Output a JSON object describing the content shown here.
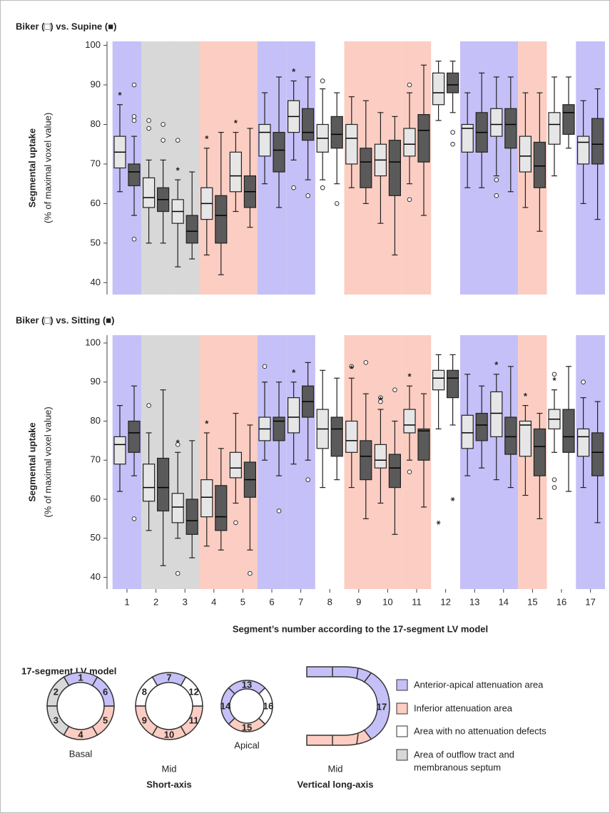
{
  "chart_data": [
    {
      "type": "box",
      "title": "Biker (□) vs. Supine (■)",
      "ylabel": "Segmental uptake",
      "ylabel_sub": "(% of maximal voxel value)",
      "ylim": [
        37,
        101
      ],
      "yticks": [
        40,
        50,
        60,
        70,
        80,
        90,
        100
      ],
      "series": [
        {
          "color": "#e6e6e6",
          "whislo": [
            63,
            50,
            44,
            47,
            58,
            65,
            71,
            66,
            64,
            55,
            65,
            81,
            64,
            67,
            59,
            67,
            60
          ],
          "q1": [
            69,
            59,
            55,
            56,
            63,
            72,
            78,
            73,
            70,
            67,
            72,
            85,
            73,
            77,
            68,
            75,
            70
          ],
          "med": [
            73,
            61.5,
            58,
            60,
            67,
            78,
            82,
            76.5,
            76.5,
            71,
            75,
            88,
            79,
            80,
            72,
            80,
            75.5
          ],
          "q3": [
            77,
            66.5,
            61,
            64,
            73,
            80,
            86,
            80,
            80,
            75,
            79,
            93,
            80,
            84,
            77,
            83,
            77
          ],
          "whishi": [
            85,
            71,
            66,
            74,
            78,
            88,
            91,
            89,
            87,
            83,
            88,
            96,
            88,
            92,
            88,
            92,
            86
          ],
          "fliers": [
            [],
            [
              81,
              79
            ],
            [
              76
            ],
            [],
            [],
            [],
            [
              64
            ],
            [
              91,
              64
            ],
            [],
            [],
            [
              90,
              61
            ],
            [],
            [],
            [
              66,
              62
            ],
            [],
            [],
            []
          ]
        },
        {
          "color": "#5a5a5a",
          "whislo": [
            57,
            50,
            46,
            42,
            54,
            59,
            66,
            65,
            60,
            47,
            57,
            83,
            64,
            63,
            53,
            74,
            56
          ],
          "q1": [
            64.5,
            58,
            50,
            50,
            59,
            68,
            76,
            74,
            64,
            62,
            70.5,
            88,
            73,
            74,
            64,
            77.5,
            70
          ],
          "med": [
            68,
            61,
            53,
            57,
            63,
            73.5,
            78,
            77.5,
            70.5,
            70.5,
            78.5,
            90,
            78,
            80,
            69.5,
            83,
            75
          ],
          "q3": [
            70,
            64,
            57,
            62,
            67,
            78,
            84,
            82,
            74,
            76,
            82.5,
            93,
            83,
            84,
            75.5,
            85,
            81.5
          ],
          "whishi": [
            77,
            71,
            68,
            78,
            79,
            92,
            92,
            88,
            86,
            82,
            95,
            96,
            93,
            92,
            88,
            92,
            89
          ],
          "fliers": [
            [
              90,
              82,
              81,
              51
            ],
            [
              80,
              76
            ],
            [],
            [],
            [],
            [],
            [
              62
            ],
            [
              60
            ],
            [],
            [],
            [],
            [
              78,
              75
            ],
            [],
            [],
            [],
            [],
            []
          ]
        }
      ],
      "significance": {
        "label": "*",
        "color": "#ff0000",
        "at": [
          0,
          2,
          3,
          4,
          6
        ]
      }
    },
    {
      "type": "box",
      "title": "Biker (□) vs. Sitting (■)",
      "ylabel": "Segmental uptake",
      "ylabel_sub": "(% of maximal voxel value)",
      "xlabel": "Segment’s number according to the 17-segment LV model",
      "categories": [
        "1",
        "2",
        "3",
        "4",
        "5",
        "6",
        "7",
        "8",
        "9",
        "10",
        "11",
        "12",
        "13",
        "14",
        "15",
        "16",
        "17"
      ],
      "ylim": [
        37,
        102
      ],
      "yticks": [
        40,
        50,
        60,
        70,
        80,
        90,
        100
      ],
      "series": [
        {
          "color": "#e6e6e6",
          "whislo": [
            62,
            52,
            50,
            48,
            59,
            70,
            69,
            63,
            63,
            59,
            70,
            78,
            66,
            65,
            61,
            72,
            63
          ],
          "q1": [
            69,
            59.5,
            54,
            55.5,
            65.5,
            75,
            77,
            73,
            72,
            68,
            77,
            88,
            73,
            76,
            71,
            78,
            71
          ],
          "med": [
            74,
            63,
            58,
            60.5,
            68,
            78,
            81,
            78,
            75,
            70,
            79,
            91,
            77,
            82,
            79,
            80.5,
            76
          ],
          "q3": [
            76,
            69,
            61.5,
            65,
            72,
            81,
            86,
            83,
            80,
            74,
            83,
            93,
            81.5,
            87.5,
            80,
            83,
            78
          ],
          "whishi": [
            84,
            77,
            72,
            77,
            82,
            90,
            90,
            93,
            91,
            83,
            89,
            97,
            92,
            92,
            84,
            88,
            86
          ],
          "fliers": [
            [],
            [
              84
            ],
            [
              74,
              41
            ],
            [],
            [
              54
            ],
            [
              94
            ],
            [],
            [],
            [
              94
            ],
            [
              86,
              85
            ],
            [
              67
            ],
            [],
            [],
            [],
            [],
            [
              92,
              65,
              63
            ],
            [
              90
            ]
          ],
          "extremes": [
            [],
            [],
            [],
            [],
            [],
            [],
            [],
            [],
            [],
            [],
            [],
            [
              54
            ],
            [],
            [],
            [],
            [],
            []
          ]
        },
        {
          "color": "#5a5a5a",
          "whislo": [
            66,
            43,
            45,
            47,
            47,
            66,
            70,
            65,
            55,
            51,
            58,
            79,
            68,
            63,
            55,
            62,
            54
          ],
          "q1": [
            72,
            57,
            51,
            52,
            60.5,
            75,
            81,
            71,
            65,
            63,
            70,
            86,
            75,
            71.5,
            66,
            72,
            66
          ],
          "med": [
            77,
            63,
            54.5,
            55.5,
            65,
            80,
            85,
            78,
            71,
            68,
            77.5,
            91,
            79,
            76,
            73.5,
            76,
            72
          ],
          "q3": [
            80,
            70.5,
            60,
            63.5,
            69.5,
            81,
            89,
            81,
            75,
            71.5,
            78,
            93,
            82,
            81,
            78,
            83,
            77
          ],
          "whishi": [
            89,
            88,
            75,
            73,
            79,
            90,
            95,
            91,
            87,
            80,
            87,
            97,
            89,
            94,
            82,
            94,
            85
          ],
          "fliers": [
            [
              55
            ],
            [],
            [],
            [],
            [
              41
            ],
            [
              57
            ],
            [
              65
            ],
            [],
            [
              95
            ],
            [
              88
            ],
            [],
            [],
            [],
            [],
            [],
            [],
            []
          ],
          "extremes": [
            [],
            [],
            [],
            [],
            [],
            [],
            [],
            [],
            [],
            [],
            [],
            [
              60
            ],
            [],
            [],
            [],
            [],
            []
          ]
        }
      ],
      "significance": {
        "label": "*",
        "color": "#ff0000",
        "at": [
          2,
          3,
          6,
          8,
          9,
          10,
          13,
          14,
          15
        ]
      }
    }
  ],
  "areas": {
    "items": [
      {
        "label": "Anterior-apical attenuation area",
        "color": "#c5c0f7"
      },
      {
        "label": "Inferior attenuation area",
        "color": "#fccdc2"
      },
      {
        "label": "Area with no attenuation defects",
        "color": "#ffffff"
      },
      {
        "label": [
          "Area of outflow tract and",
          "membranous septum"
        ],
        "color": "#d8d8d8"
      }
    ],
    "segment_area": [
      0,
      3,
      3,
      1,
      1,
      0,
      0,
      2,
      1,
      1,
      1,
      2,
      0,
      0,
      1,
      2,
      0
    ]
  },
  "model": {
    "title": "17-segment LV model",
    "rings": [
      {
        "name": "Basal",
        "segments": [
          "1",
          "2",
          "3",
          "4",
          "5",
          "6"
        ]
      },
      {
        "name": "Mid",
        "segments": [
          "7",
          "8",
          "9",
          "10",
          "11",
          "12"
        ]
      },
      {
        "name": "Apical",
        "segments": [
          "13",
          "14",
          "15",
          "16"
        ]
      }
    ],
    "short_axis": "Short-axis",
    "long_axis": {
      "name": "Mid",
      "segment": "17",
      "title": "Vertical long-axis"
    }
  }
}
